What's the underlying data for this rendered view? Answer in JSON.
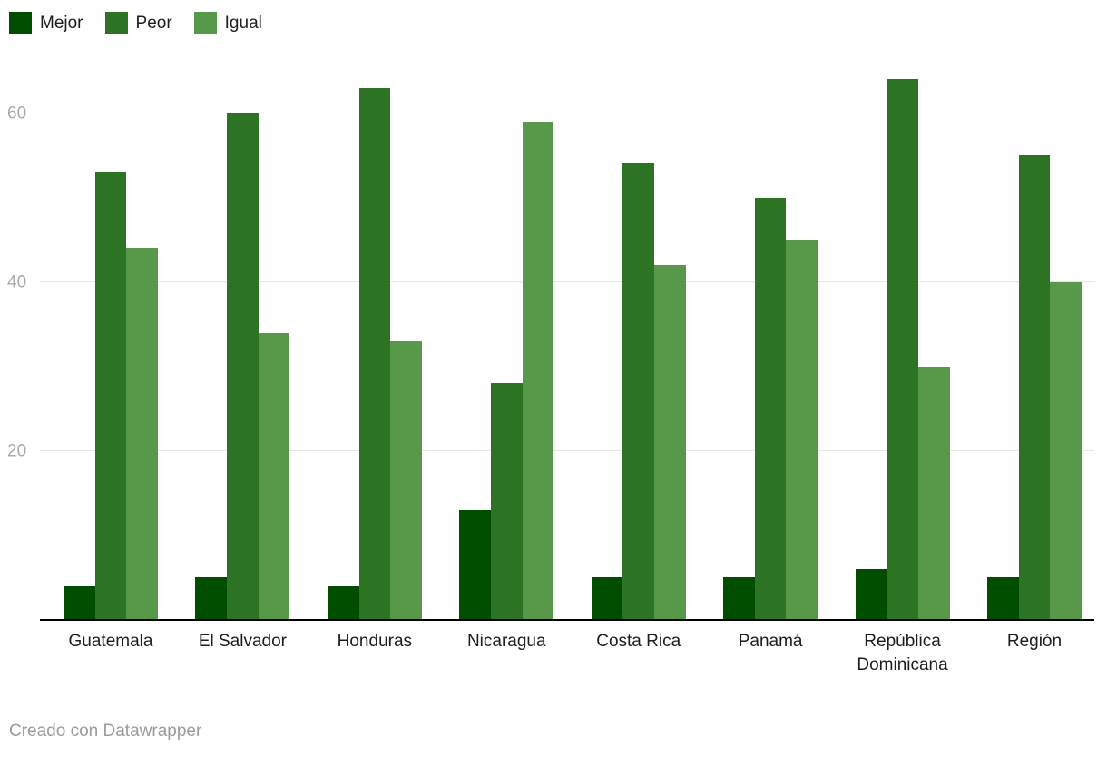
{
  "chart_data": {
    "type": "bar",
    "title": "",
    "categories": [
      "Guatemala",
      "El Salvador",
      "Honduras",
      "Nicaragua",
      "Costa Rica",
      "Panamá",
      "República Dominicana",
      "Región"
    ],
    "series": [
      {
        "name": "Mejor",
        "color": "#004d00",
        "values": [
          4,
          5,
          4,
          13,
          5,
          5,
          6,
          5
        ]
      },
      {
        "name": "Peor",
        "color": "#2d7324",
        "values": [
          53,
          60,
          63,
          28,
          54,
          50,
          64,
          55
        ]
      },
      {
        "name": "Igual",
        "color": "#579948",
        "values": [
          44,
          34,
          33,
          59,
          42,
          45,
          30,
          40
        ]
      }
    ],
    "xlabel": "",
    "ylabel": "",
    "ylim": [
      0,
      65
    ],
    "yticks": [
      20,
      40,
      60
    ],
    "grid": true,
    "legend_position": "top-left",
    "axis_color": "#000000",
    "gridline_color": "#e6e6e6",
    "tick_label_color": "#a9a9a9",
    "category_label_color": "#1d1d1d"
  },
  "footer": {
    "credit": "Creado con Datawrapper"
  }
}
